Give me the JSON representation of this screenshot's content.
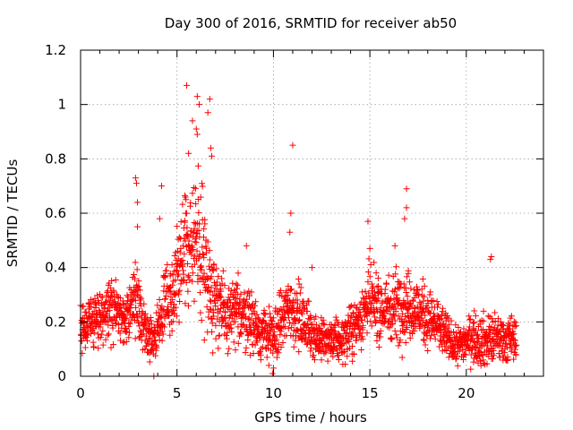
{
  "chart_data": {
    "type": "scatter",
    "title": "Day 300 of 2016, SRMTID for receiver ab50",
    "xlabel": "GPS time / hours",
    "ylabel": "SRMTID / TECUs",
    "xlim": [
      0,
      24
    ],
    "ylim": [
      0,
      1.2
    ],
    "x_ticks": [
      0,
      5,
      10,
      15,
      20
    ],
    "y_ticks": [
      0,
      0.2,
      0.4,
      0.6,
      0.8,
      1,
      1.2
    ],
    "x_tick_labels": [
      "0",
      "5",
      "10",
      "15",
      "20"
    ],
    "y_tick_labels": [
      "0",
      "0.2",
      "0.4",
      "0.6",
      "0.8",
      "1",
      "1.2"
    ],
    "grid": true,
    "marker": "+",
    "series": [
      {
        "name": "SRMTID",
        "color": "#ff0000",
        "x_range": [
          0,
          22.6
        ],
        "trend": [
          {
            "x": 0.0,
            "y": 0.18,
            "spread": 0.08
          },
          {
            "x": 1.0,
            "y": 0.22,
            "spread": 0.08
          },
          {
            "x": 1.8,
            "y": 0.26,
            "spread": 0.09
          },
          {
            "x": 2.3,
            "y": 0.2,
            "spread": 0.08
          },
          {
            "x": 2.9,
            "y": 0.32,
            "spread": 0.12
          },
          {
            "x": 3.2,
            "y": 0.18,
            "spread": 0.08
          },
          {
            "x": 3.8,
            "y": 0.12,
            "spread": 0.07
          },
          {
            "x": 4.4,
            "y": 0.28,
            "spread": 0.1
          },
          {
            "x": 5.0,
            "y": 0.34,
            "spread": 0.13
          },
          {
            "x": 5.6,
            "y": 0.52,
            "spread": 0.2
          },
          {
            "x": 6.2,
            "y": 0.48,
            "spread": 0.22
          },
          {
            "x": 6.8,
            "y": 0.32,
            "spread": 0.13
          },
          {
            "x": 7.5,
            "y": 0.22,
            "spread": 0.09
          },
          {
            "x": 8.5,
            "y": 0.24,
            "spread": 0.1
          },
          {
            "x": 9.2,
            "y": 0.17,
            "spread": 0.08
          },
          {
            "x": 10.0,
            "y": 0.14,
            "spread": 0.08
          },
          {
            "x": 10.8,
            "y": 0.26,
            "spread": 0.1
          },
          {
            "x": 11.5,
            "y": 0.2,
            "spread": 0.09
          },
          {
            "x": 12.5,
            "y": 0.13,
            "spread": 0.06
          },
          {
            "x": 13.5,
            "y": 0.13,
            "spread": 0.06
          },
          {
            "x": 14.2,
            "y": 0.18,
            "spread": 0.08
          },
          {
            "x": 14.9,
            "y": 0.27,
            "spread": 0.1
          },
          {
            "x": 15.8,
            "y": 0.24,
            "spread": 0.1
          },
          {
            "x": 16.6,
            "y": 0.27,
            "spread": 0.11
          },
          {
            "x": 17.6,
            "y": 0.24,
            "spread": 0.09
          },
          {
            "x": 18.6,
            "y": 0.18,
            "spread": 0.08
          },
          {
            "x": 19.4,
            "y": 0.11,
            "spread": 0.05
          },
          {
            "x": 20.3,
            "y": 0.14,
            "spread": 0.07
          },
          {
            "x": 21.0,
            "y": 0.13,
            "spread": 0.08
          },
          {
            "x": 21.8,
            "y": 0.14,
            "spread": 0.07
          },
          {
            "x": 22.6,
            "y": 0.13,
            "spread": 0.07
          }
        ],
        "outliers": [
          {
            "x": 5.5,
            "y": 1.07
          },
          {
            "x": 6.05,
            "y": 1.03
          },
          {
            "x": 6.15,
            "y": 1.0
          },
          {
            "x": 6.7,
            "y": 1.02
          },
          {
            "x": 6.6,
            "y": 0.97
          },
          {
            "x": 5.8,
            "y": 0.94
          },
          {
            "x": 6.0,
            "y": 0.91
          },
          {
            "x": 6.05,
            "y": 0.89
          },
          {
            "x": 11.0,
            "y": 0.85
          },
          {
            "x": 6.75,
            "y": 0.84
          },
          {
            "x": 5.6,
            "y": 0.82
          },
          {
            "x": 6.8,
            "y": 0.81
          },
          {
            "x": 2.85,
            "y": 0.73
          },
          {
            "x": 2.9,
            "y": 0.71
          },
          {
            "x": 4.2,
            "y": 0.7
          },
          {
            "x": 16.9,
            "y": 0.69
          },
          {
            "x": 2.95,
            "y": 0.64
          },
          {
            "x": 16.9,
            "y": 0.62
          },
          {
            "x": 10.9,
            "y": 0.6
          },
          {
            "x": 16.8,
            "y": 0.58
          },
          {
            "x": 14.9,
            "y": 0.57
          },
          {
            "x": 4.1,
            "y": 0.58
          },
          {
            "x": 2.95,
            "y": 0.55
          },
          {
            "x": 10.85,
            "y": 0.53
          },
          {
            "x": 16.3,
            "y": 0.48
          },
          {
            "x": 8.6,
            "y": 0.48
          },
          {
            "x": 15.0,
            "y": 0.47
          },
          {
            "x": 21.3,
            "y": 0.44
          },
          {
            "x": 21.25,
            "y": 0.43
          },
          {
            "x": 12.0,
            "y": 0.4
          },
          {
            "x": 3.8,
            "y": 0.0
          },
          {
            "x": 9.95,
            "y": 0.01
          },
          {
            "x": 10.0,
            "y": 0.03
          }
        ]
      }
    ]
  }
}
